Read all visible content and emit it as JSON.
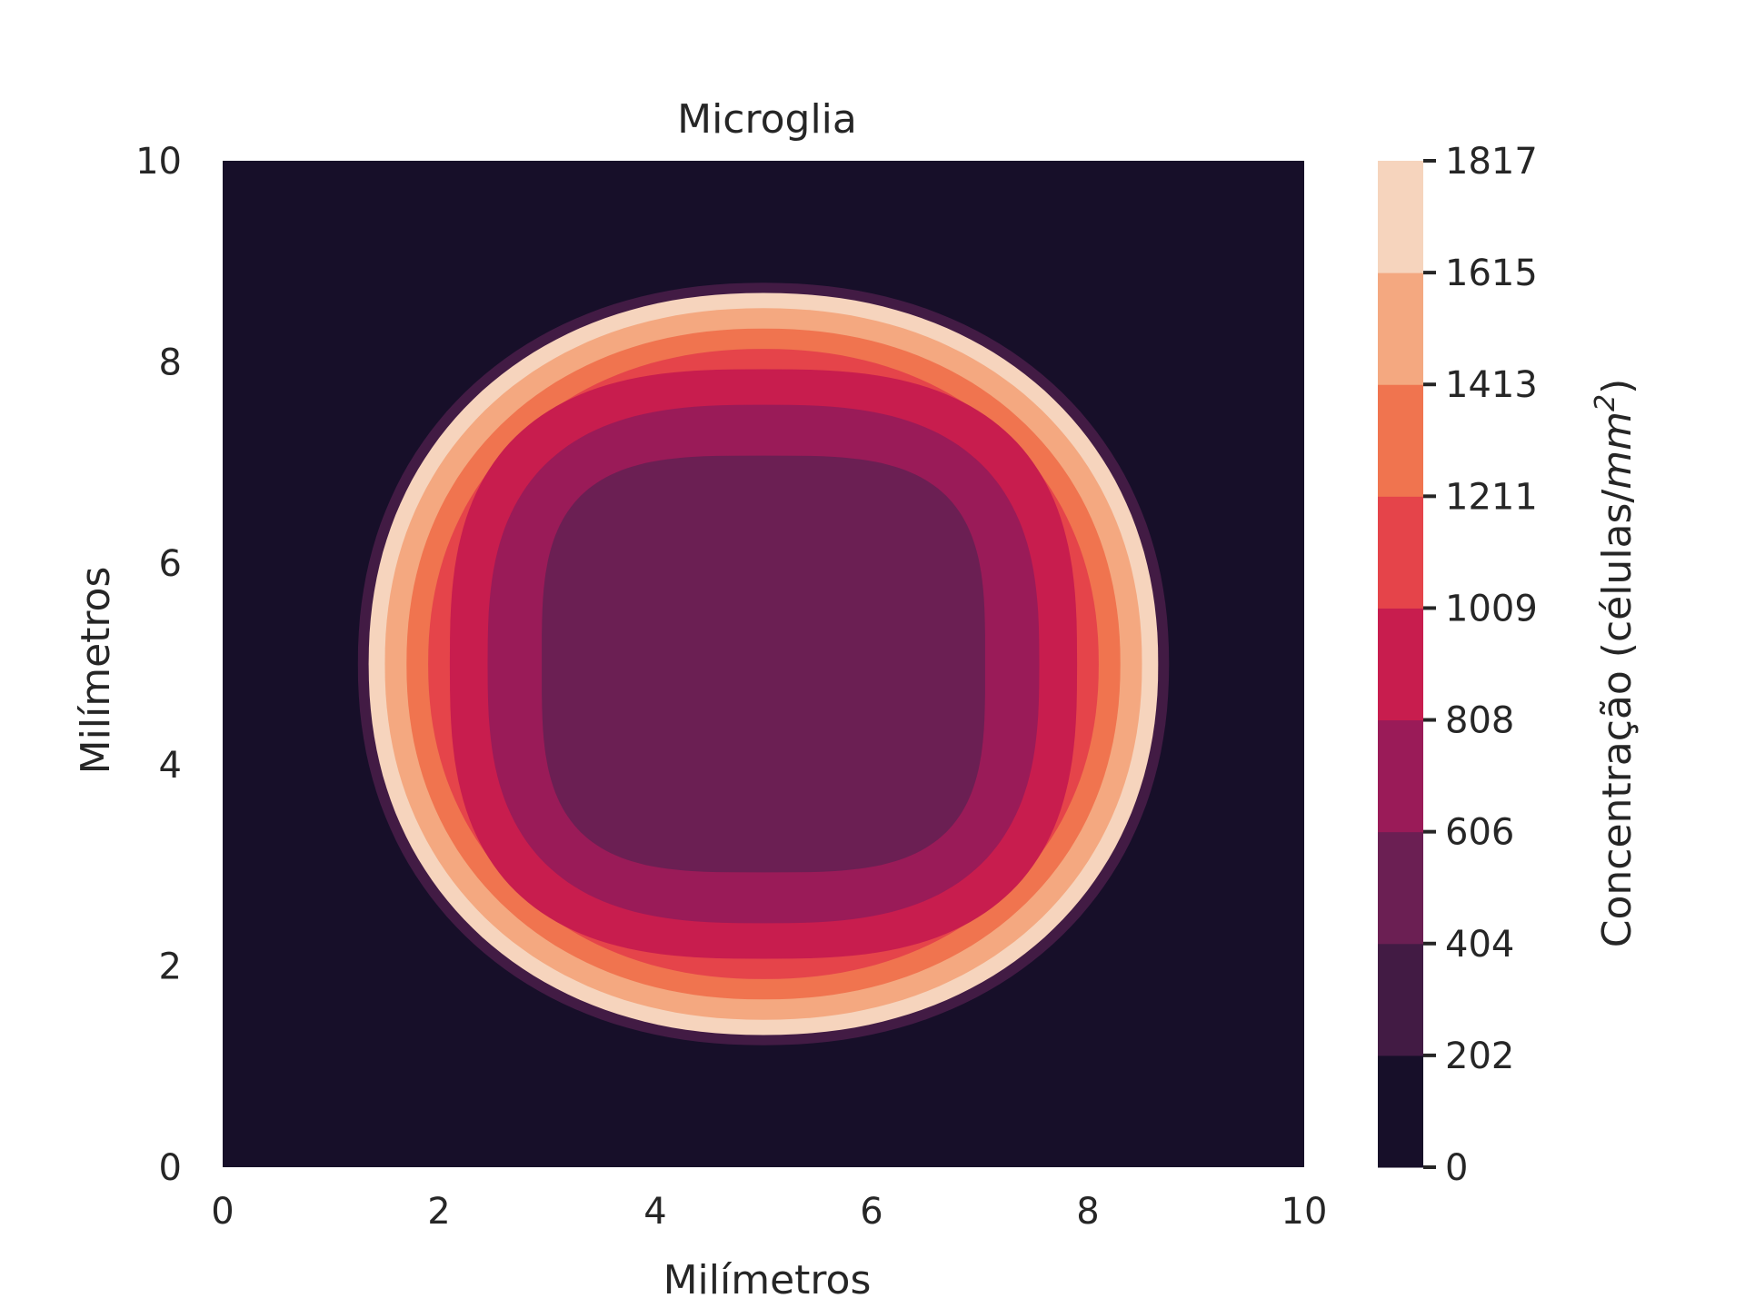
{
  "chart_data": {
    "type": "heatmap",
    "subtype": "filled-contour",
    "title": "Microglia",
    "xlabel": "Milímetros",
    "ylabel": "Milímetros",
    "xlim": [
      0,
      10
    ],
    "ylim": [
      0,
      10
    ],
    "xticks": [
      "0",
      "2",
      "4",
      "6",
      "8",
      "10"
    ],
    "yticks": [
      "0",
      "2",
      "4",
      "6",
      "8",
      "10"
    ],
    "grid": false,
    "colorbar": {
      "label": "Concentração (células/mm²)",
      "label_main": "Concentração (células/",
      "label_unit": "mm",
      "label_exp": "2",
      "label_close": ")",
      "ticks": [
        "0",
        "202",
        "404",
        "606",
        "808",
        "1009",
        "1211",
        "1413",
        "1615",
        "1817"
      ],
      "levels": [
        0,
        202,
        404,
        606,
        808,
        1009,
        1211,
        1413,
        1615,
        1817
      ],
      "colors": [
        "#170f29",
        "#421b44",
        "#6b1f53",
        "#9a1b58",
        "#c81d4e",
        "#e5444a",
        "#f0744f",
        "#f4a880",
        "#f6d4bd"
      ]
    },
    "field": {
      "center": [
        5.0,
        5.0
      ],
      "description_shape": "ring-shaped concentration peaking near radius ~3.6 mm",
      "contours": [
        {
          "level_index": 1,
          "radius_mm": 3.75
        },
        {
          "level_index": 8,
          "radius_mm": 3.65
        },
        {
          "level_index": 7,
          "radius_mm": 3.5
        },
        {
          "level_index": 6,
          "radius_mm": 3.3
        },
        {
          "level_index": 5,
          "radius_mm": 3.1
        },
        {
          "level_index": 4,
          "radius_mm": 2.9
        },
        {
          "level_index": 3,
          "radius_mm": 2.55
        },
        {
          "level_index": 2,
          "radius_mm": 2.05
        }
      ]
    }
  }
}
